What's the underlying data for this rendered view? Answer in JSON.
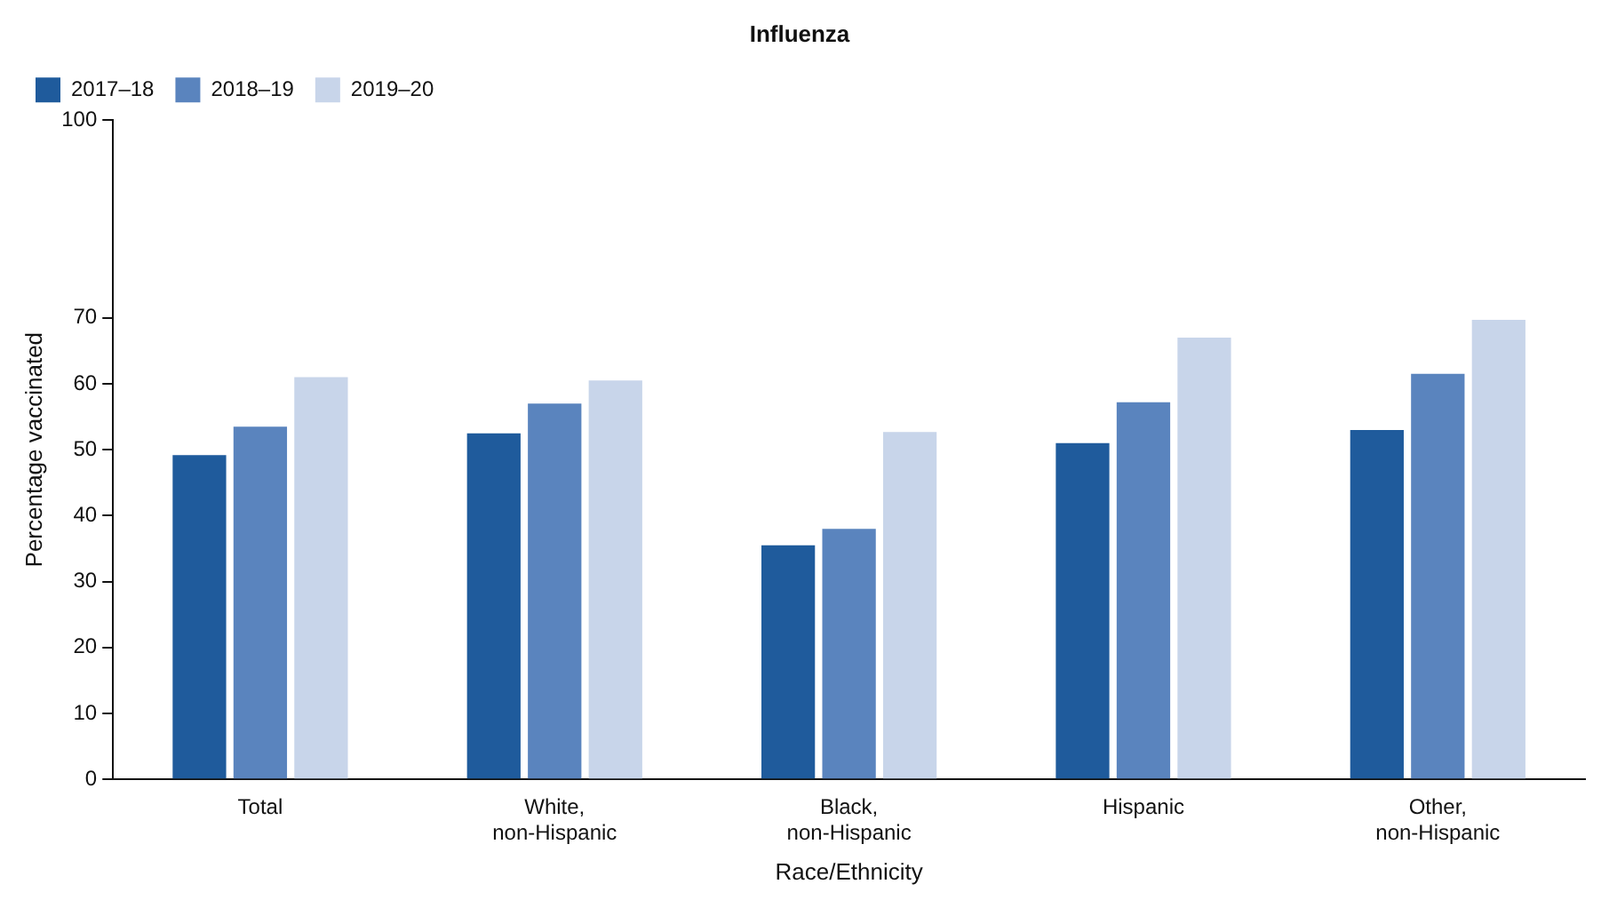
{
  "chart_data": {
    "type": "bar",
    "title": "Influenza",
    "xlabel": "Race/Ethnicity",
    "ylabel": "Percentage vaccinated",
    "categories": [
      "Total",
      "White, non-Hispanic",
      "Black, non-Hispanic",
      "Hispanic",
      "Other, non-Hispanic"
    ],
    "series": [
      {
        "name": "2017–18",
        "color": "#1f5b9c",
        "values": [
          49.2,
          52.5,
          35.5,
          51,
          53
        ]
      },
      {
        "name": "2018–19",
        "color": "#5a84be",
        "values": [
          53.5,
          57,
          38,
          57.2,
          61.5
        ]
      },
      {
        "name": "2019–20",
        "color": "#c8d5ea",
        "values": [
          61,
          60.5,
          52.7,
          67,
          69.7
        ]
      }
    ],
    "ylim": [
      0,
      100
    ],
    "yticks": [
      0,
      10,
      20,
      30,
      40,
      50,
      60,
      70,
      100
    ],
    "grid": false,
    "legend": "top left"
  }
}
